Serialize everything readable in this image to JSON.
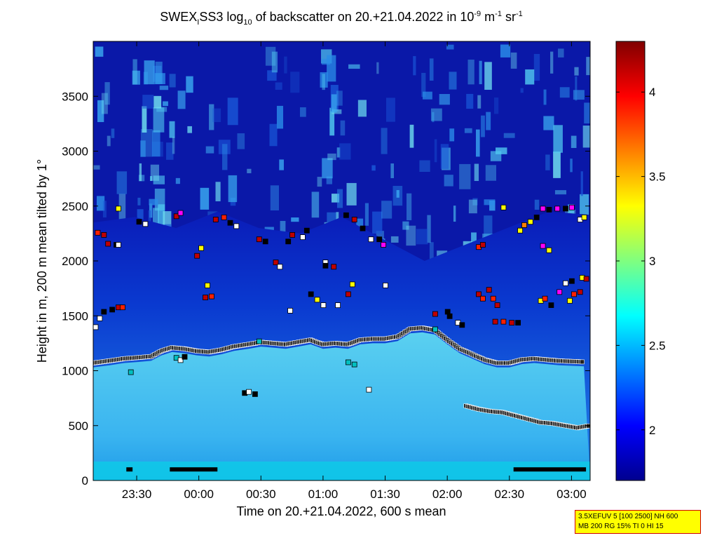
{
  "chart_data": {
    "type": "heatmap",
    "title": {
      "main_a": "SWEX",
      "sub_i": "I",
      "main_b": "SS3 log",
      "sub_10": "10",
      "main_c": " of backscatter on 20.+21.04.2022 in 10",
      "sup_a": "-9",
      "main_d": " m",
      "sup_b": "-1",
      "main_e": " sr",
      "sup_c": "-1"
    },
    "xlabel": "Time on 20.+21.04.2022, 600 s mean",
    "ylabel": "Height in m, 200 m mean tilted by 1°",
    "xlim": [
      "23:09",
      "03:09"
    ],
    "ylim": [
      0,
      4000
    ],
    "x_ticks": [
      {
        "label": "23:30",
        "min": 21
      },
      {
        "label": "00:00",
        "min": 51
      },
      {
        "label": "00:30",
        "min": 81
      },
      {
        "label": "01:00",
        "min": 111
      },
      {
        "label": "01:30",
        "min": 141
      },
      {
        "label": "02:00",
        "min": 171
      },
      {
        "label": "02:30",
        "min": 201
      },
      {
        "label": "03:00",
        "min": 231
      }
    ],
    "y_ticks": [
      {
        "label": "0",
        "value": 0
      },
      {
        "label": "500",
        "value": 500
      },
      {
        "label": "1000",
        "value": 1000
      },
      {
        "label": "1500",
        "value": 1500
      },
      {
        "label": "2000",
        "value": 2000
      },
      {
        "label": "2500",
        "value": 2500
      },
      {
        "label": "3000",
        "value": 3000
      },
      {
        "label": "3500",
        "value": 3500
      }
    ],
    "colorbar": {
      "range": [
        1.7,
        4.3
      ],
      "ticks": [
        {
          "label": "2",
          "value": 2
        },
        {
          "label": "2.5",
          "value": 2.5
        },
        {
          "label": "3",
          "value": 3
        },
        {
          "label": "3.5",
          "value": 3.5
        },
        {
          "label": "4",
          "value": 4
        }
      ],
      "colormap": "jet"
    },
    "boundary_layer_top": {
      "name": "",
      "points": [
        [
          0,
          1070
        ],
        [
          8,
          1090
        ],
        [
          15,
          1110
        ],
        [
          22,
          1120
        ],
        [
          28,
          1130
        ],
        [
          33,
          1180
        ],
        [
          38,
          1210
        ],
        [
          44,
          1200
        ],
        [
          50,
          1180
        ],
        [
          56,
          1170
        ],
        [
          62,
          1190
        ],
        [
          68,
          1220
        ],
        [
          75,
          1240
        ],
        [
          81,
          1260
        ],
        [
          87,
          1250
        ],
        [
          93,
          1240
        ],
        [
          99,
          1260
        ],
        [
          105,
          1280
        ],
        [
          111,
          1240
        ],
        [
          117,
          1250
        ],
        [
          123,
          1240
        ],
        [
          129,
          1280
        ],
        [
          135,
          1290
        ],
        [
          141,
          1290
        ],
        [
          147,
          1310
        ],
        [
          153,
          1380
        ],
        [
          159,
          1390
        ],
        [
          165,
          1370
        ],
        [
          171,
          1280
        ],
        [
          177,
          1200
        ],
        [
          183,
          1150
        ],
        [
          189,
          1100
        ],
        [
          195,
          1070
        ],
        [
          201,
          1070
        ],
        [
          207,
          1100
        ],
        [
          213,
          1110
        ],
        [
          219,
          1100
        ],
        [
          225,
          1090
        ],
        [
          231,
          1085
        ],
        [
          237,
          1080
        ]
      ]
    },
    "low_layer": {
      "name": "",
      "points": [
        [
          180,
          680
        ],
        [
          186,
          650
        ],
        [
          192,
          630
        ],
        [
          198,
          620
        ],
        [
          204,
          590
        ],
        [
          210,
          560
        ],
        [
          216,
          530
        ],
        [
          222,
          520
        ],
        [
          228,
          500
        ],
        [
          234,
          480
        ],
        [
          240,
          500
        ]
      ]
    },
    "surface_markers": [
      {
        "from": 16,
        "to": 19
      },
      {
        "from": 37,
        "to": 60
      },
      {
        "from": 203,
        "to": 238
      }
    ],
    "aerosol_points": [
      {
        "t": 1,
        "h": 1400,
        "c": "#ffffff"
      },
      {
        "t": 3,
        "h": 1480,
        "c": "#ffffff"
      },
      {
        "t": 5,
        "h": 1540,
        "c": "#000000"
      },
      {
        "t": 9,
        "h": 1560,
        "c": "#000000"
      },
      {
        "t": 12,
        "h": 1580,
        "c": "#c00000"
      },
      {
        "t": 14,
        "h": 1580,
        "c": "#ff2000"
      },
      {
        "t": 2,
        "h": 2260,
        "c": "#ff2000"
      },
      {
        "t": 5,
        "h": 2240,
        "c": "#c00000"
      },
      {
        "t": 7,
        "h": 2160,
        "c": "#c00000"
      },
      {
        "t": 11,
        "h": 2150,
        "c": "#000000"
      },
      {
        "t": 12,
        "h": 2150,
        "c": "#ffffff"
      },
      {
        "t": 12,
        "h": 2480,
        "c": "#ffff00"
      },
      {
        "t": 22,
        "h": 2360,
        "c": "#000000"
      },
      {
        "t": 25,
        "h": 2340,
        "c": "#ffffff"
      },
      {
        "t": 40,
        "h": 2410,
        "c": "#c00000"
      },
      {
        "t": 42,
        "h": 2440,
        "c": "#ff00ff"
      },
      {
        "t": 50,
        "h": 2050,
        "c": "#c00000"
      },
      {
        "t": 52,
        "h": 2120,
        "c": "#ffff00"
      },
      {
        "t": 54,
        "h": 1670,
        "c": "#c00000"
      },
      {
        "t": 57,
        "h": 1680,
        "c": "#ff2000"
      },
      {
        "t": 55,
        "h": 1780,
        "c": "#ffff00"
      },
      {
        "t": 59,
        "h": 2380,
        "c": "#c00000"
      },
      {
        "t": 63,
        "h": 2400,
        "c": "#ff2000"
      },
      {
        "t": 66,
        "h": 2350,
        "c": "#000000"
      },
      {
        "t": 69,
        "h": 2320,
        "c": "#ffffff"
      },
      {
        "t": 80,
        "h": 2200,
        "c": "#c00000"
      },
      {
        "t": 83,
        "h": 2180,
        "c": "#000000"
      },
      {
        "t": 88,
        "h": 1990,
        "c": "#c00000"
      },
      {
        "t": 90,
        "h": 1950,
        "c": "#ffffff"
      },
      {
        "t": 94,
        "h": 2180,
        "c": "#000000"
      },
      {
        "t": 96,
        "h": 2240,
        "c": "#c00000"
      },
      {
        "t": 101,
        "h": 2220,
        "c": "#ffffff"
      },
      {
        "t": 103,
        "h": 2280,
        "c": "#000000"
      },
      {
        "t": 95,
        "h": 1550,
        "c": "#ffffff"
      },
      {
        "t": 105,
        "h": 1700,
        "c": "#000000"
      },
      {
        "t": 108,
        "h": 1650,
        "c": "#ffff00"
      },
      {
        "t": 111,
        "h": 1600,
        "c": "#ffffff"
      },
      {
        "t": 112,
        "h": 1990,
        "c": "#ffffff"
      },
      {
        "t": 118,
        "h": 1600,
        "c": "#ffffff"
      },
      {
        "t": 123,
        "h": 1700,
        "c": "#c00000"
      },
      {
        "t": 125,
        "h": 1790,
        "c": "#ffff00"
      },
      {
        "t": 122,
        "h": 2420,
        "c": "#000000"
      },
      {
        "t": 126,
        "h": 2380,
        "c": "#c00000"
      },
      {
        "t": 130,
        "h": 2300,
        "c": "#000000"
      },
      {
        "t": 134,
        "h": 2200,
        "c": "#ffffff"
      },
      {
        "t": 138,
        "h": 2200,
        "c": "#000000"
      },
      {
        "t": 140,
        "h": 2150,
        "c": "#ff00ff"
      },
      {
        "t": 116,
        "h": 1950,
        "c": "#c00000"
      },
      {
        "t": 112,
        "h": 1960,
        "c": "#000000"
      },
      {
        "t": 123,
        "h": 1080,
        "c": "#00c0c0"
      },
      {
        "t": 126,
        "h": 1060,
        "c": "#00c0c0"
      },
      {
        "t": 133,
        "h": 830,
        "c": "#ffffff"
      },
      {
        "t": 141,
        "h": 1780,
        "c": "#ffffff"
      },
      {
        "t": 165,
        "h": 1520,
        "c": "#c00000"
      },
      {
        "t": 171,
        "h": 1540,
        "c": "#000000"
      },
      {
        "t": 172,
        "h": 1500,
        "c": "#000000"
      },
      {
        "t": 176,
        "h": 1440,
        "c": "#ffffff"
      },
      {
        "t": 178,
        "h": 1420,
        "c": "#000000"
      },
      {
        "t": 186,
        "h": 1700,
        "c": "#c00000"
      },
      {
        "t": 188,
        "h": 1660,
        "c": "#ff2000"
      },
      {
        "t": 191,
        "h": 1740,
        "c": "#c00000"
      },
      {
        "t": 193,
        "h": 1660,
        "c": "#ff2000"
      },
      {
        "t": 195,
        "h": 1600,
        "c": "#c00000"
      },
      {
        "t": 186,
        "h": 2130,
        "c": "#ff2000"
      },
      {
        "t": 188,
        "h": 2150,
        "c": "#c00000"
      },
      {
        "t": 198,
        "h": 2490,
        "c": "#ffff00"
      },
      {
        "t": 194,
        "h": 1450,
        "c": "#c00000"
      },
      {
        "t": 198,
        "h": 1450,
        "c": "#ff2000"
      },
      {
        "t": 202,
        "h": 1440,
        "c": "#c00000"
      },
      {
        "t": 205,
        "h": 1440,
        "c": "#000000"
      },
      {
        "t": 206,
        "h": 2280,
        "c": "#ffff00"
      },
      {
        "t": 208,
        "h": 2330,
        "c": "#ff8000"
      },
      {
        "t": 211,
        "h": 2360,
        "c": "#ffff00"
      },
      {
        "t": 214,
        "h": 2400,
        "c": "#000000"
      },
      {
        "t": 217,
        "h": 2480,
        "c": "#ff00ff"
      },
      {
        "t": 220,
        "h": 2470,
        "c": "#000000"
      },
      {
        "t": 224,
        "h": 2480,
        "c": "#ff00ff"
      },
      {
        "t": 228,
        "h": 2480,
        "c": "#000000"
      },
      {
        "t": 231,
        "h": 2490,
        "c": "#ff00ff"
      },
      {
        "t": 235,
        "h": 2380,
        "c": "#ffffff"
      },
      {
        "t": 237,
        "h": 2400,
        "c": "#ffff00"
      },
      {
        "t": 217,
        "h": 2140,
        "c": "#ff00ff"
      },
      {
        "t": 220,
        "h": 2100,
        "c": "#ffff00"
      },
      {
        "t": 216,
        "h": 1640,
        "c": "#ffff00"
      },
      {
        "t": 218,
        "h": 1660,
        "c": "#ff2000"
      },
      {
        "t": 221,
        "h": 1600,
        "c": "#000000"
      },
      {
        "t": 225,
        "h": 1720,
        "c": "#ff00ff"
      },
      {
        "t": 228,
        "h": 1800,
        "c": "#ffffff"
      },
      {
        "t": 231,
        "h": 1820,
        "c": "#000000"
      },
      {
        "t": 230,
        "h": 1640,
        "c": "#ffff00"
      },
      {
        "t": 232,
        "h": 1700,
        "c": "#ff2000"
      },
      {
        "t": 235,
        "h": 1720,
        "c": "#c00000"
      },
      {
        "t": 236,
        "h": 1850,
        "c": "#ffff00"
      },
      {
        "t": 238,
        "h": 1840,
        "c": "#c00000"
      },
      {
        "t": 73,
        "h": 800,
        "c": "#000000"
      },
      {
        "t": 75,
        "h": 810,
        "c": "#ffffff"
      },
      {
        "t": 78,
        "h": 790,
        "c": "#000000"
      },
      {
        "t": 18,
        "h": 990,
        "c": "#00c0c0"
      },
      {
        "t": 40,
        "h": 1120,
        "c": "#00c0c0"
      },
      {
        "t": 42,
        "h": 1100,
        "c": "#ffffff"
      },
      {
        "t": 44,
        "h": 1130,
        "c": "#000000"
      },
      {
        "t": 80,
        "h": 1270,
        "c": "#00c0c0"
      },
      {
        "t": 165,
        "h": 1380,
        "c": "#00c0c0"
      }
    ]
  },
  "info_box": {
    "line1": "3.5XEFUV 5 [100 2500] NH 600",
    "line2": "MB 200 RG 15% TI 0 HI 15"
  }
}
